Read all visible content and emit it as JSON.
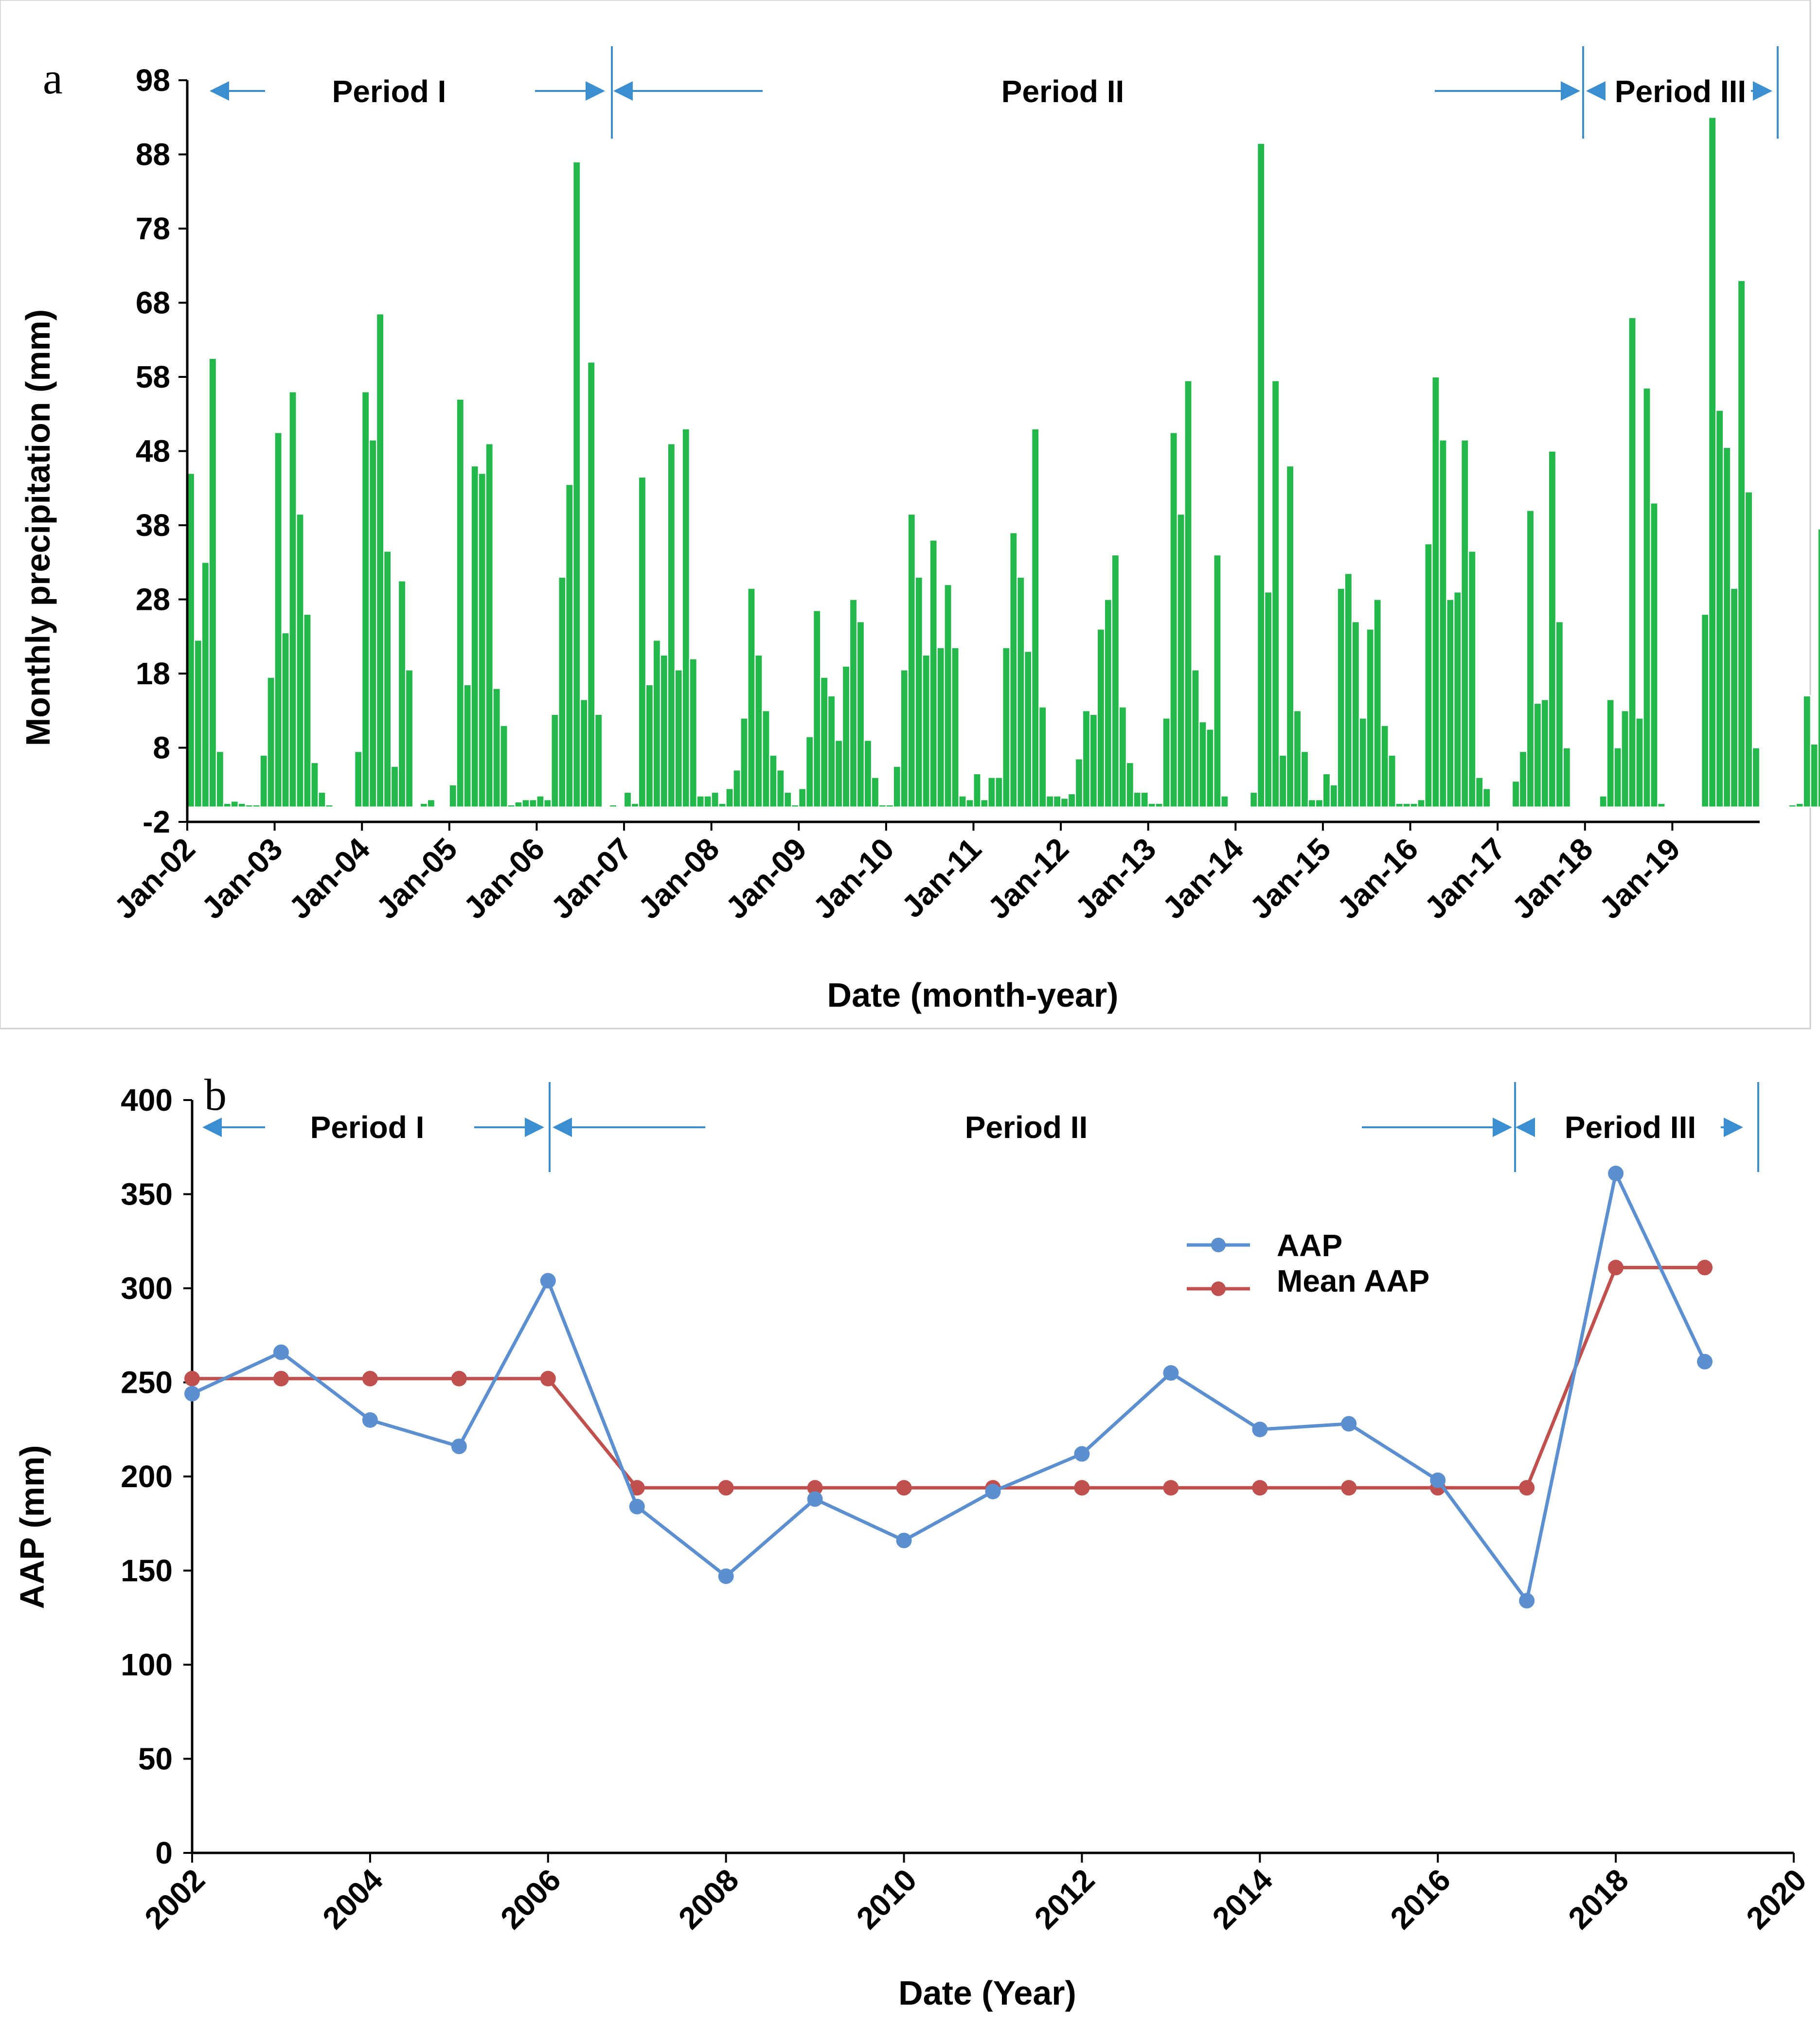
{
  "chart_data": [
    {
      "panel": "a",
      "type": "bar",
      "title": "",
      "xlabel": "Date (month-year)",
      "ylabel": "Monthly precipitation (mm)",
      "ylim": [
        -2,
        98
      ],
      "yticks": [
        -2,
        8,
        18,
        28,
        38,
        48,
        58,
        68,
        78,
        88,
        98
      ],
      "year_labels": [
        "Jan-02",
        "Jan-03",
        "Jan-04",
        "Jan-05",
        "Jan-06",
        "Jan-07",
        "Jan-08",
        "Jan-09",
        "Jan-10",
        "Jan-11",
        "Jan-12",
        "Jan-13",
        "Jan-14",
        "Jan-15",
        "Jan-16",
        "Jan-17",
        "Jan-18",
        "Jan-19"
      ],
      "first_month": "Jan-02",
      "values": [
        45,
        22.5,
        33,
        60.5,
        7.5,
        0.5,
        0.8,
        0.5,
        0.3,
        0.3,
        7,
        17.5,
        50.5,
        23.5,
        56,
        39.5,
        26,
        6,
        2,
        0.3,
        0,
        0,
        0,
        7.5,
        56,
        49.5,
        66.5,
        34.5,
        5.5,
        30.5,
        18.5,
        0,
        0.5,
        1,
        0,
        0,
        3,
        55,
        16.5,
        46,
        45,
        49,
        16,
        11,
        0.3,
        0.7,
        1,
        1,
        1.5,
        1,
        12.5,
        31,
        43.5,
        87,
        14.5,
        60,
        12.5,
        0,
        0.3,
        0,
        2,
        0.5,
        44.5,
        16.5,
        22.5,
        20.5,
        49,
        18.5,
        51,
        20,
        1.5,
        1.5,
        2,
        0.5,
        2.5,
        5,
        12,
        29.5,
        20.5,
        13,
        7,
        5,
        2,
        0.3,
        2.5,
        9.5,
        26.5,
        17.5,
        15,
        9,
        19,
        28,
        25,
        9,
        4,
        0.3,
        0.3,
        5.5,
        18.5,
        39.5,
        31,
        20.5,
        36,
        21.5,
        30,
        21.5,
        1.5,
        1,
        4.5,
        1,
        4,
        4,
        21.5,
        37,
        31,
        21,
        51,
        13.5,
        1.5,
        1.5,
        1.2,
        1.8,
        6.5,
        13,
        12.5,
        24,
        28,
        34,
        13.5,
        6,
        2,
        2,
        0.5,
        0.5,
        12,
        50.5,
        39.5,
        57.5,
        18.5,
        11.5,
        10.5,
        34,
        1.5,
        0,
        0,
        0,
        2,
        89.5,
        29,
        57.5,
        7,
        46,
        13,
        7.5,
        1,
        1,
        4.5,
        3,
        29.5,
        31.5,
        25,
        12,
        24,
        28,
        11,
        7,
        0.5,
        0.5,
        0.5,
        1,
        35.5,
        58,
        49.5,
        28,
        29,
        49.5,
        34.5,
        4,
        2.5,
        0,
        0,
        0,
        3.5,
        7.5,
        40,
        14,
        14.5,
        48,
        25,
        8,
        0,
        0,
        0,
        0,
        1.5,
        14.5,
        8,
        13,
        66,
        12,
        56.5,
        41,
        0.5,
        0,
        0,
        0,
        0,
        0,
        26,
        93,
        53.5,
        48.5,
        29.5,
        71,
        42.5,
        8,
        0,
        0,
        0,
        0,
        0.3,
        0.5,
        15,
        8.5,
        37.5
      ],
      "period_labels": [
        "Period I",
        "Period II",
        "Period III"
      ]
    },
    {
      "panel": "b",
      "type": "line",
      "title": "",
      "xlabel": "Date (Year)",
      "ylabel": "AAP (mm)",
      "xlim": [
        2002,
        2020
      ],
      "ylim": [
        0,
        400
      ],
      "xticks": [
        2002,
        2004,
        2006,
        2008,
        2010,
        2012,
        2014,
        2016,
        2018,
        2020
      ],
      "yticks": [
        0,
        50,
        100,
        150,
        200,
        250,
        300,
        350,
        400
      ],
      "x": [
        2002,
        2003,
        2004,
        2005,
        2006,
        2007,
        2008,
        2009,
        2010,
        2011,
        2012,
        2013,
        2014,
        2015,
        2016,
        2017,
        2018,
        2019
      ],
      "series": [
        {
          "name": "AAP",
          "color": "#5b8fd0",
          "values": [
            244,
            266,
            230,
            216,
            304,
            184,
            147,
            188,
            166,
            192,
            212,
            255,
            225,
            228,
            198,
            134,
            361,
            261
          ]
        },
        {
          "name": "Mean AAP",
          "color": "#c0504d",
          "values": [
            252,
            252,
            252,
            252,
            252,
            194,
            194,
            194,
            194,
            194,
            194,
            194,
            194,
            194,
            194,
            194,
            311,
            311
          ]
        }
      ],
      "legend": "upper-center",
      "period_labels": [
        "Period I",
        "Period II",
        "Period III"
      ]
    }
  ],
  "panel_letters": [
    "a",
    "b"
  ],
  "colors": {
    "bar": "#22b84a",
    "bar_edge": "#ffffff",
    "arrow": "#3b8fd0",
    "axis": "#000000"
  }
}
